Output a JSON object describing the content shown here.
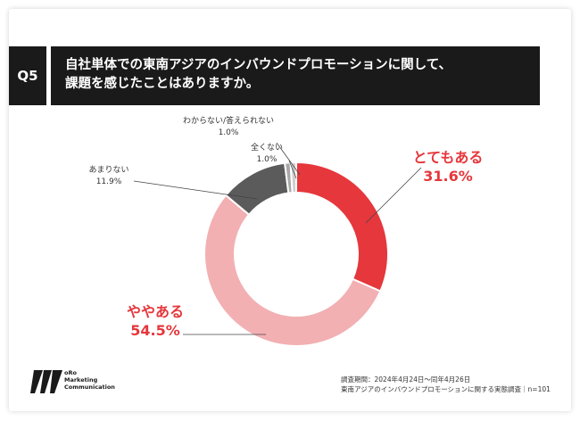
{
  "question": {
    "number": "Q5",
    "line1": "自社単体での東南アジアのインバウンドプロモーションに関して、",
    "line2": "課題を感じたことはありますか。"
  },
  "chart_data": {
    "type": "pie",
    "style": "donut",
    "categories": [
      "とてもある",
      "ややある",
      "あまりない",
      "全くない",
      "わからない/答えられない"
    ],
    "values": [
      31.6,
      54.5,
      11.9,
      1.0,
      1.0
    ],
    "value_labels": [
      "31.6%",
      "54.5%",
      "11.9%",
      "1.0%",
      "1.0%"
    ],
    "colors": [
      "#e5373c",
      "#f2b0b3",
      "#5b5b5b",
      "#a8a8a8",
      "#cfcfcf"
    ],
    "label_colors": [
      "#e5373c",
      "#e5373c",
      "#333333",
      "#333333",
      "#333333"
    ],
    "title": "",
    "xlabel": "",
    "ylabel": "",
    "legend": "none"
  },
  "footer": {
    "logo_lines": [
      "oRo",
      "Marketing",
      "Communication"
    ],
    "period": "調査期間：2024年4月24日〜同年4月26日",
    "survey": "東南アジアのインバウンドプロモーションに関する実態調査｜n=101"
  }
}
